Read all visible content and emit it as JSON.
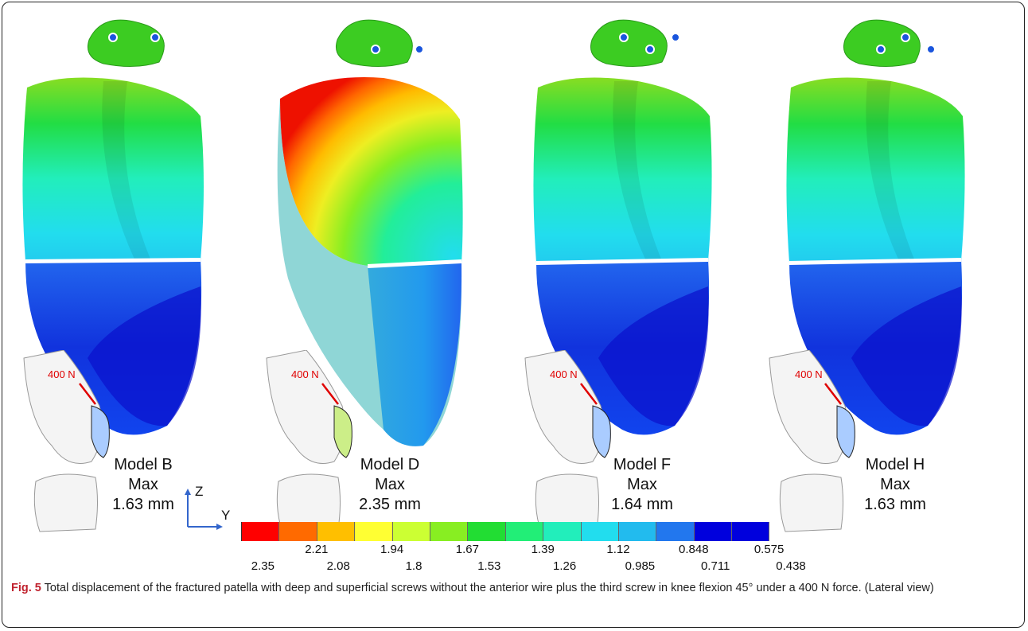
{
  "models": [
    {
      "name": "Model B",
      "max_label": "Max",
      "max_value": "1.63 mm",
      "screws": 2
    },
    {
      "name": "Model D",
      "max_label": "Max",
      "max_value": "2.35 mm",
      "screws": 2
    },
    {
      "name": "Model F",
      "max_label": "Max",
      "max_value": "1.64  mm",
      "screws": 3
    },
    {
      "name": "Model H",
      "max_label": "Max",
      "max_value": "1.63 mm",
      "screws": 3
    }
  ],
  "force_label": "400 N",
  "axes": {
    "z": "Z",
    "y": "Y"
  },
  "legend": {
    "colors": [
      "#ff0000",
      "#ff6a00",
      "#ffbf00",
      "#ffff33",
      "#ccff33",
      "#88ee22",
      "#22dd33",
      "#22ee77",
      "#22eebb",
      "#22ddee",
      "#22bbee",
      "#2277ee",
      "#0000dd",
      "#0000dd"
    ],
    "upper_ticks": [
      "2.21",
      "1.94",
      "1.67",
      "1.39",
      "1.12",
      "0.848",
      "0.575"
    ],
    "lower_ticks": [
      "2.35",
      "2.08",
      "1.8",
      "1.53",
      "1.26",
      "0.985",
      "0.711",
      "0.438"
    ]
  },
  "caption": {
    "label": "Fig. 5",
    "text": "Total displacement of the fractured patella with deep and superficial screws without the anterior wire plus the third screw in knee flexion 45° under a 400 N force. (Lateral view)"
  }
}
